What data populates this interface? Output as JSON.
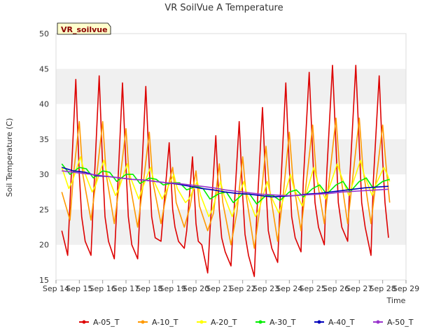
{
  "chart_data": {
    "type": "line",
    "title": "VR SoilVue A Temperature",
    "xlabel": "Time",
    "ylabel": "Soil Temperature (C)",
    "badge": "VR_soilvue",
    "ylim": [
      15,
      50
    ],
    "yticks": [
      15,
      20,
      25,
      30,
      35,
      40,
      45,
      50
    ],
    "xlim": [
      14,
      29
    ],
    "xticks": [
      {
        "x": 14,
        "label": "Sep 14"
      },
      {
        "x": 15,
        "label": "Sep 15"
      },
      {
        "x": 16,
        "label": "Sep 16"
      },
      {
        "x": 17,
        "label": "Sep 17"
      },
      {
        "x": 18,
        "label": "Sep 18"
      },
      {
        "x": 19,
        "label": "Sep 19"
      },
      {
        "x": 20,
        "label": "Sep 20"
      },
      {
        "x": 21,
        "label": "Sep 21"
      },
      {
        "x": 22,
        "label": "Sep 22"
      },
      {
        "x": 23,
        "label": "Sep 23"
      },
      {
        "x": 24,
        "label": "Sep 24"
      },
      {
        "x": 25,
        "label": "Sep 25"
      },
      {
        "x": 26,
        "label": "Sep 26"
      },
      {
        "x": 27,
        "label": "Sep 27"
      },
      {
        "x": 28,
        "label": "Sep 28"
      },
      {
        "x": 29,
        "label": "Sep 29"
      }
    ],
    "grid": "horizontal bands",
    "legend_position": "bottom",
    "series": [
      {
        "name": "A-05_T",
        "color": "#dd0000",
        "x": [
          14.25,
          14.5,
          14.6,
          14.85,
          15.0,
          15.1,
          15.25,
          15.5,
          15.6,
          15.85,
          16.0,
          16.1,
          16.25,
          16.5,
          16.6,
          16.85,
          17.0,
          17.1,
          17.25,
          17.5,
          17.6,
          17.85,
          18.0,
          18.1,
          18.25,
          18.5,
          18.6,
          18.85,
          19.0,
          19.1,
          19.25,
          19.5,
          19.6,
          19.85,
          20.0,
          20.1,
          20.25,
          20.5,
          20.6,
          20.85,
          21.0,
          21.1,
          21.25,
          21.5,
          21.6,
          21.85,
          22.0,
          22.1,
          22.25,
          22.5,
          22.6,
          22.85,
          23.0,
          23.1,
          23.25,
          23.5,
          23.6,
          23.85,
          24.0,
          24.1,
          24.25,
          24.5,
          24.6,
          24.85,
          25.0,
          25.1,
          25.25,
          25.5,
          25.6,
          25.85,
          26.0,
          26.1,
          26.25,
          26.5,
          26.6,
          26.85,
          27.0,
          27.1,
          27.25,
          27.5,
          27.6,
          27.85,
          28.0,
          28.1,
          28.25
        ],
        "y": [
          22,
          18.5,
          26,
          43.5,
          30,
          24,
          20.5,
          18.5,
          26,
          44,
          31,
          24,
          20.5,
          18,
          25,
          43,
          31,
          24,
          20,
          18,
          25,
          42.5,
          31,
          24,
          21,
          20.5,
          24.5,
          34.5,
          25,
          22.5,
          20.5,
          19.5,
          22,
          32.5,
          23,
          20.5,
          20,
          16,
          22,
          35.5,
          25,
          21,
          19,
          17,
          23,
          37.5,
          27,
          21.5,
          18.5,
          15.5,
          24,
          39.5,
          28,
          22,
          19.5,
          17.5,
          26,
          43,
          31,
          24,
          21,
          19,
          29,
          44.5,
          33,
          26,
          22.5,
          20,
          30,
          45.5,
          34,
          26,
          22.5,
          20.5,
          30,
          45.5,
          34,
          26,
          22.5,
          18.5,
          29,
          44,
          32,
          26,
          21
        ]
      },
      {
        "name": "A-10_T",
        "color": "#ff9900",
        "x": [
          14.25,
          14.6,
          14.75,
          15.0,
          15.15,
          15.5,
          15.75,
          16.0,
          16.15,
          16.5,
          16.75,
          17.0,
          17.15,
          17.5,
          17.75,
          18.0,
          18.15,
          18.5,
          18.75,
          19.0,
          19.15,
          19.5,
          19.75,
          20.0,
          20.15,
          20.5,
          20.75,
          21.0,
          21.15,
          21.5,
          21.75,
          22.0,
          22.15,
          22.5,
          22.75,
          23.0,
          23.15,
          23.5,
          23.75,
          24.0,
          24.15,
          24.5,
          24.75,
          25.0,
          25.15,
          25.5,
          25.75,
          26.0,
          26.15,
          26.5,
          26.75,
          27.0,
          27.15,
          27.5,
          27.75,
          28.0,
          28.15,
          28.3
        ],
        "y": [
          27.5,
          23.5,
          30,
          37.5,
          30,
          23.5,
          30,
          37.5,
          30,
          23,
          29.5,
          36.5,
          29,
          22.5,
          29,
          36,
          29,
          23,
          27.5,
          31,
          26,
          22.5,
          25.5,
          30.5,
          25.5,
          22,
          24.5,
          31.5,
          26,
          20,
          24.5,
          32.5,
          27,
          19.5,
          25.5,
          34,
          28,
          20.5,
          27.5,
          36,
          29.5,
          22,
          29.5,
          37,
          30,
          23,
          30.5,
          38,
          31,
          23,
          30.5,
          38,
          31,
          23,
          30,
          37,
          31,
          26
        ]
      },
      {
        "name": "A-20_T",
        "color": "#ffff00",
        "x": [
          14.25,
          14.55,
          14.7,
          15.05,
          15.2,
          15.55,
          15.7,
          16.05,
          16.2,
          16.55,
          16.7,
          17.05,
          17.2,
          17.55,
          17.7,
          18.05,
          18.2,
          18.55,
          18.7,
          19.05,
          19.2,
          19.55,
          19.7,
          20.05,
          20.2,
          20.55,
          20.7,
          21.05,
          21.2,
          21.55,
          21.7,
          22.05,
          22.2,
          22.55,
          22.7,
          23.05,
          23.2,
          23.55,
          23.7,
          24.05,
          24.2,
          24.55,
          24.7,
          25.05,
          25.2,
          25.55,
          25.7,
          26.05,
          26.2,
          26.55,
          26.7,
          27.05,
          27.2,
          27.55,
          27.7,
          28.05,
          28.2,
          28.3
        ],
        "y": [
          31,
          28,
          29,
          32.5,
          30.5,
          27.5,
          28.5,
          32,
          30,
          27,
          28,
          31.5,
          29.5,
          26.5,
          28,
          31,
          29,
          26.5,
          27.5,
          30,
          28,
          26,
          26.5,
          29,
          27,
          24,
          25,
          29,
          27,
          24,
          25.5,
          29,
          27,
          24,
          25,
          29,
          27,
          24.5,
          26,
          30,
          28,
          25.5,
          27,
          31,
          29,
          26.5,
          28,
          31.5,
          30,
          27,
          28.5,
          32,
          30,
          27,
          28.5,
          31,
          30,
          29
        ]
      },
      {
        "name": "A-30_T",
        "color": "#00ee00",
        "x": [
          14.25,
          14.6,
          15.0,
          15.3,
          15.6,
          16.0,
          16.3,
          16.6,
          17.0,
          17.3,
          17.6,
          18.0,
          18.3,
          18.6,
          19.0,
          19.3,
          19.6,
          20.0,
          20.3,
          20.6,
          21.0,
          21.3,
          21.6,
          22.0,
          22.3,
          22.6,
          23.0,
          23.3,
          23.6,
          24.0,
          24.3,
          24.6,
          25.0,
          25.3,
          25.6,
          26.0,
          26.3,
          26.6,
          27.0,
          27.3,
          27.6,
          28.0,
          28.3
        ],
        "y": [
          31.5,
          30,
          31,
          30.8,
          29.5,
          30.5,
          30.3,
          29,
          30,
          30,
          28.7,
          29.5,
          29.3,
          28.5,
          28.8,
          28.8,
          27.8,
          28.3,
          28,
          26.5,
          27.3,
          27.5,
          26,
          27.2,
          27.2,
          25.8,
          27,
          27,
          26.3,
          27.5,
          27.8,
          26.8,
          28,
          28.5,
          27.2,
          28.5,
          29,
          27.5,
          29,
          29.5,
          28,
          29,
          29.3
        ]
      },
      {
        "name": "A-40_T",
        "color": "#0000bb",
        "x": [
          14.25,
          14.75,
          15.25,
          15.75,
          16.25,
          16.75,
          17.25,
          17.75,
          18.25,
          18.75,
          19.25,
          19.75,
          20.25,
          20.75,
          21.25,
          21.75,
          22.25,
          22.75,
          23.25,
          23.75,
          24.25,
          24.75,
          25.25,
          25.75,
          26.25,
          26.75,
          27.25,
          27.75,
          28.25
        ],
        "y": [
          31,
          30.5,
          30.3,
          29.8,
          29.7,
          29.5,
          29.3,
          29.2,
          29,
          28.8,
          28.6,
          28.3,
          28,
          27.8,
          27.5,
          27.3,
          27.2,
          27,
          26.8,
          26.9,
          27,
          27.2,
          27.3,
          27.5,
          27.7,
          27.9,
          28.1,
          28.2,
          28.3
        ]
      },
      {
        "name": "A-50_T",
        "color": "#9933cc",
        "x": [
          14.25,
          14.75,
          15.25,
          15.75,
          16.25,
          16.75,
          17.25,
          17.75,
          18.25,
          18.75,
          19.25,
          19.75,
          20.25,
          20.75,
          21.25,
          21.75,
          22.25,
          22.75,
          23.25,
          23.75,
          24.25,
          24.75,
          25.25,
          25.75,
          26.25,
          26.75,
          27.25,
          27.75,
          28.25
        ],
        "y": [
          30.5,
          30.3,
          30.1,
          29.9,
          29.7,
          29.5,
          29.3,
          29.2,
          29,
          28.8,
          28.7,
          28.5,
          28.3,
          28.1,
          27.8,
          27.6,
          27.4,
          27.2,
          27.1,
          27,
          27,
          27.1,
          27.2,
          27.3,
          27.5,
          27.6,
          27.7,
          27.8,
          27.9
        ]
      }
    ]
  }
}
